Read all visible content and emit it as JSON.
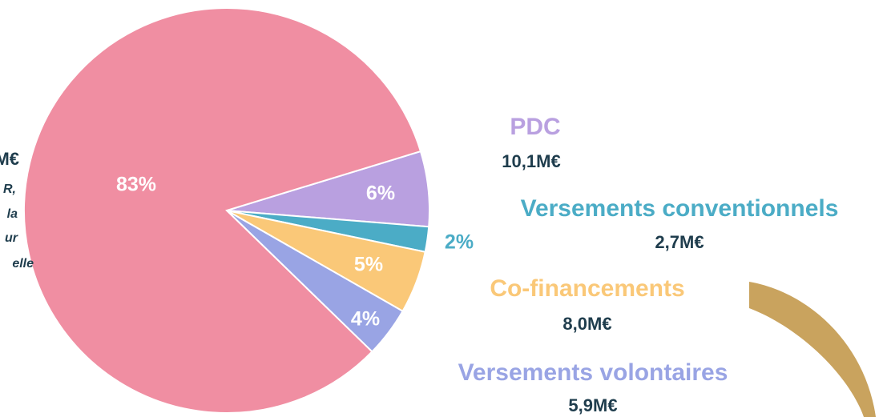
{
  "chart_data": {
    "type": "pie",
    "series": [
      {
        "name": "PDC",
        "color": "#b9a0e0",
        "value": 6,
        "value_label": "6%",
        "amount": "10,1M€"
      },
      {
        "name": "Versements conventionnels",
        "color": "#4bacc6",
        "value": 2,
        "value_label": "2%",
        "amount": "2,7M€"
      },
      {
        "name": "Co-financements",
        "color": "#fac878",
        "value": 5,
        "value_label": "5%",
        "amount": "8,0M€"
      },
      {
        "name": "Versements volontaires",
        "color": "#99a4e4",
        "value": 4,
        "value_label": "4%",
        "amount": "5,9M€"
      },
      {
        "name": null,
        "color": "#f08ea2",
        "value": 83,
        "value_label": "83%",
        "amount": null
      }
    ],
    "left_fragments": [
      "M€",
      "R,",
      "la",
      "ur",
      "elle"
    ]
  }
}
